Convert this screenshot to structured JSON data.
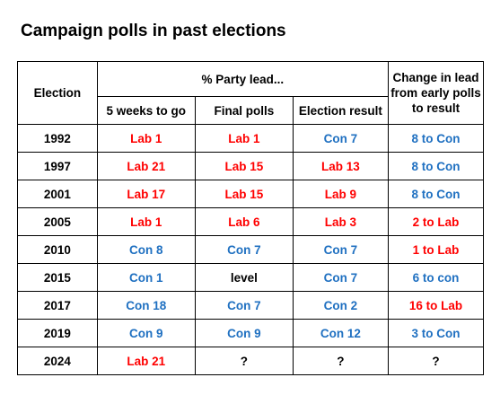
{
  "title": "Campaign polls in past elections",
  "colors": {
    "lab": "#ff0000",
    "con": "#1f70c1",
    "neutral": "#000000"
  },
  "headers": {
    "election": "Election",
    "party_lead": "% Party lead...",
    "change": "Change in lead from early polls to result",
    "sub": [
      "5 weeks to go",
      "Final polls",
      "Election result"
    ]
  },
  "rows": [
    {
      "election": "1992",
      "weeks5": {
        "text": "Lab 1",
        "party": "lab"
      },
      "final": {
        "text": "Lab 1",
        "party": "lab"
      },
      "result": {
        "text": "Con 7",
        "party": "con"
      },
      "change": {
        "text": "8 to Con",
        "party": "con"
      }
    },
    {
      "election": "1997",
      "weeks5": {
        "text": "Lab 21",
        "party": "lab"
      },
      "final": {
        "text": "Lab 15",
        "party": "lab"
      },
      "result": {
        "text": "Lab 13",
        "party": "lab"
      },
      "change": {
        "text": "8 to Con",
        "party": "con"
      }
    },
    {
      "election": "2001",
      "weeks5": {
        "text": "Lab 17",
        "party": "lab"
      },
      "final": {
        "text": "Lab 15",
        "party": "lab"
      },
      "result": {
        "text": "Lab 9",
        "party": "lab"
      },
      "change": {
        "text": "8 to Con",
        "party": "con"
      }
    },
    {
      "election": "2005",
      "weeks5": {
        "text": "Lab 1",
        "party": "lab"
      },
      "final": {
        "text": "Lab 6",
        "party": "lab"
      },
      "result": {
        "text": "Lab 3",
        "party": "lab"
      },
      "change": {
        "text": "2 to Lab",
        "party": "lab"
      }
    },
    {
      "election": "2010",
      "weeks5": {
        "text": "Con 8",
        "party": "con"
      },
      "final": {
        "text": "Con 7",
        "party": "con"
      },
      "result": {
        "text": "Con 7",
        "party": "con"
      },
      "change": {
        "text": "1 to Lab",
        "party": "lab"
      }
    },
    {
      "election": "2015",
      "weeks5": {
        "text": "Con 1",
        "party": "con"
      },
      "final": {
        "text": "level",
        "party": "neutral"
      },
      "result": {
        "text": "Con 7",
        "party": "con"
      },
      "change": {
        "text": "6 to con",
        "party": "con"
      }
    },
    {
      "election": "2017",
      "weeks5": {
        "text": "Con 18",
        "party": "con"
      },
      "final": {
        "text": "Con 7",
        "party": "con"
      },
      "result": {
        "text": "Con 2",
        "party": "con"
      },
      "change": {
        "text": "16 to Lab",
        "party": "lab"
      }
    },
    {
      "election": "2019",
      "weeks5": {
        "text": "Con 9",
        "party": "con"
      },
      "final": {
        "text": "Con 9",
        "party": "con"
      },
      "result": {
        "text": "Con 12",
        "party": "con"
      },
      "change": {
        "text": "3 to Con",
        "party": "con"
      }
    },
    {
      "election": "2024",
      "weeks5": {
        "text": "Lab 21",
        "party": "lab"
      },
      "final": {
        "text": "?",
        "party": "neutral"
      },
      "result": {
        "text": "?",
        "party": "neutral"
      },
      "change": {
        "text": "?",
        "party": "neutral"
      }
    }
  ]
}
